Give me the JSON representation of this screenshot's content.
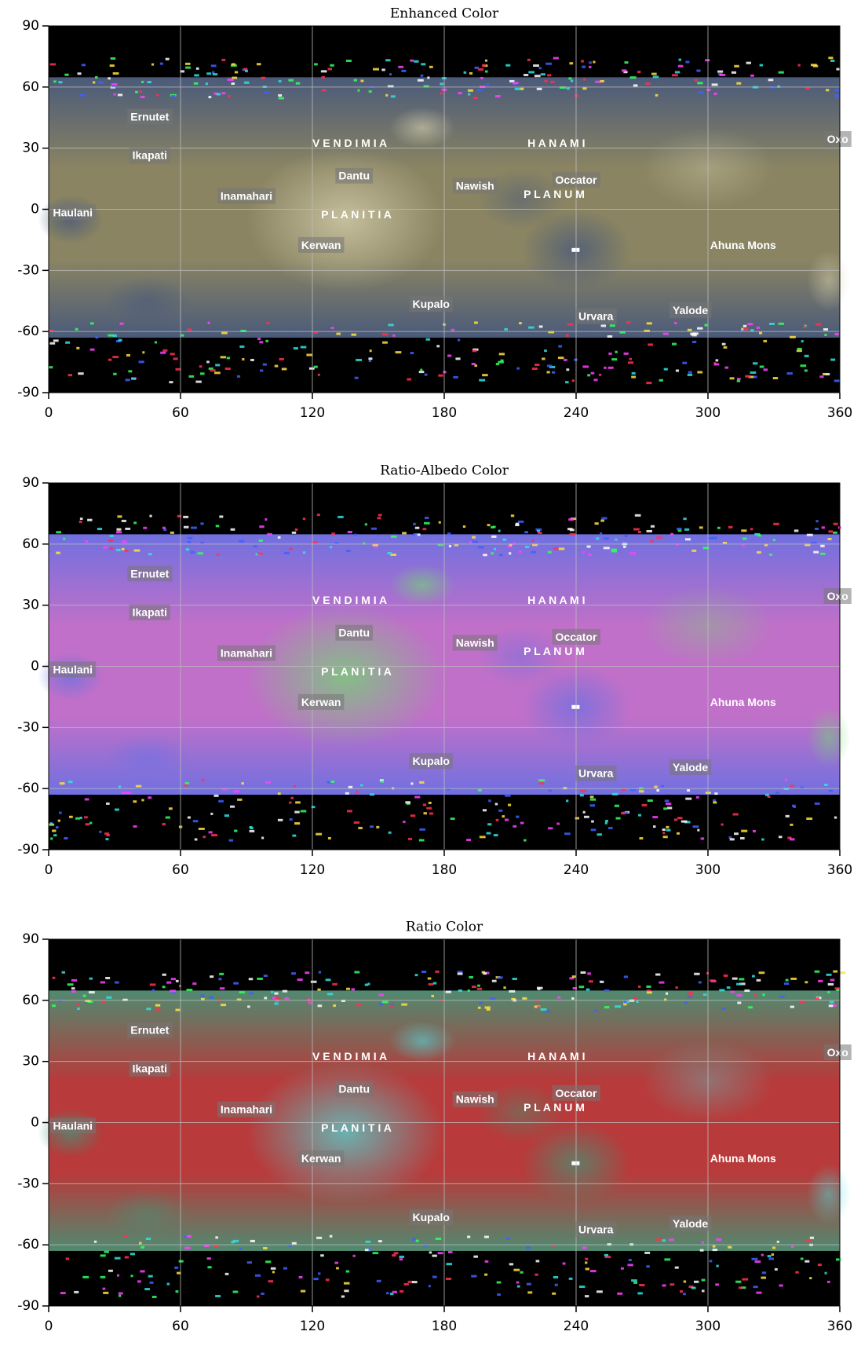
{
  "chart_data": [
    {
      "type": "map",
      "title": "Enhanced Color",
      "xlim": [
        0,
        360
      ],
      "ylim": [
        -90,
        90
      ],
      "xticks": [
        0,
        60,
        120,
        180,
        240,
        300,
        360
      ],
      "yticks": [
        -90,
        -60,
        -30,
        0,
        30,
        60,
        90
      ],
      "grid": true,
      "colors": [
        "#8a8462",
        "#d8d2b0",
        "#4a5a7a"
      ]
    },
    {
      "type": "map",
      "title": "Ratio-Albedo Color",
      "xlim": [
        0,
        360
      ],
      "ylim": [
        -90,
        90
      ],
      "xticks": [
        0,
        60,
        120,
        180,
        240,
        300,
        360
      ],
      "yticks": [
        -90,
        -60,
        -30,
        0,
        30,
        60,
        90
      ],
      "grid": true,
      "colors": [
        "#c070c8",
        "#70d870",
        "#7070e0"
      ]
    },
    {
      "type": "map",
      "title": "Ratio Color",
      "xlim": [
        0,
        360
      ],
      "ylim": [
        -90,
        90
      ],
      "xticks": [
        0,
        60,
        120,
        180,
        240,
        300,
        360
      ],
      "yticks": [
        -90,
        -60,
        -30,
        0,
        30,
        60,
        90
      ],
      "grid": true,
      "colors": [
        "#b83a3a",
        "#50d8d8",
        "#508a70"
      ]
    }
  ],
  "feature_labels": [
    {
      "text": "Ernutet",
      "x": 46,
      "y": 45
    },
    {
      "text": "Ikapati",
      "x": 46,
      "y": 26
    },
    {
      "text": "Haulani",
      "x": 11,
      "y": -2
    },
    {
      "text": "Inamahari",
      "x": 90,
      "y": 6
    },
    {
      "text": "Dantu",
      "x": 139,
      "y": 16
    },
    {
      "text": "V E N D I M I A",
      "x": 137,
      "y": 32
    },
    {
      "text": "P L A N I T I A",
      "x": 140,
      "y": -3
    },
    {
      "text": "Kerwan",
      "x": 124,
      "y": -18
    },
    {
      "text": "Nawish",
      "x": 194,
      "y": 11
    },
    {
      "text": "H A N A M I",
      "x": 231,
      "y": 32
    },
    {
      "text": "Occator",
      "x": 240,
      "y": 14
    },
    {
      "text": "P L A N U M",
      "x": 230,
      "y": 7
    },
    {
      "text": "Ahuna Mons",
      "x": 316,
      "y": -18
    },
    {
      "text": "Oxo",
      "x": 359,
      "y": 34
    },
    {
      "text": "Kupalo",
      "x": 174,
      "y": -47
    },
    {
      "text": "Urvara",
      "x": 249,
      "y": -53
    },
    {
      "text": "Yalode",
      "x": 292,
      "y": -50
    }
  ]
}
